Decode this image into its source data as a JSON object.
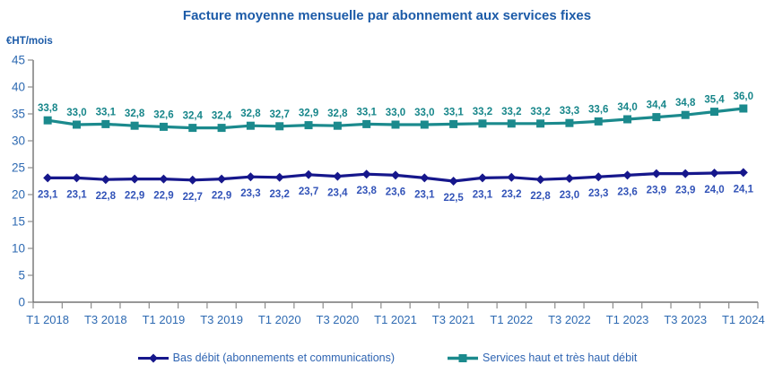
{
  "chart_data": {
    "type": "line",
    "title": "Facture moyenne mensuelle par abonnement aux services fixes",
    "ylabel": "€HT/mois",
    "xlabel": "",
    "ylim": [
      0,
      45
    ],
    "y_ticks": [
      0,
      5,
      10,
      15,
      20,
      25,
      30,
      35,
      40,
      45
    ],
    "grid": false,
    "legend_position": "bottom",
    "decimal_separator": ",",
    "categories": [
      "T1 2018",
      "T2 2018",
      "T3 2018",
      "T4 2018",
      "T1 2019",
      "T2 2019",
      "T3 2019",
      "T4 2019",
      "T1 2020",
      "T2 2020",
      "T3 2020",
      "T4 2020",
      "T1 2021",
      "T2 2021",
      "T3 2021",
      "T4 2021",
      "T1 2022",
      "T2 2022",
      "T3 2022",
      "T4 2022",
      "T1 2023",
      "T2 2023",
      "T3 2023",
      "T4 2023",
      "T1 2024"
    ],
    "x_axis_visible_labels": [
      "T1 2018",
      "T3 2018",
      "T1 2019",
      "T3 2019",
      "T1 2020",
      "T3 2020",
      "T1 2021",
      "T3 2021",
      "T1 2022",
      "T3 2022",
      "T1 2023",
      "T3 2023",
      "T1 2024"
    ],
    "series": [
      {
        "name": "Bas débit (abonnements et communications)",
        "marker": "diamond",
        "color": "#16178C",
        "label_color": "#3253B8",
        "label_position": "below",
        "values": [
          23.1,
          23.1,
          22.8,
          22.9,
          22.9,
          22.7,
          22.9,
          23.3,
          23.2,
          23.7,
          23.4,
          23.8,
          23.6,
          23.1,
          22.5,
          23.1,
          23.2,
          22.8,
          23.0,
          23.3,
          23.6,
          23.9,
          23.9,
          24.0,
          24.1
        ]
      },
      {
        "name": "Services haut et très haut débit",
        "marker": "square",
        "color": "#1B8A8D",
        "label_color": "#17868A",
        "label_position": "above",
        "values": [
          33.8,
          33.0,
          33.1,
          32.8,
          32.6,
          32.4,
          32.4,
          32.8,
          32.7,
          32.9,
          32.8,
          33.1,
          33.0,
          33.0,
          33.1,
          33.2,
          33.2,
          33.2,
          33.3,
          33.6,
          34.0,
          34.4,
          34.8,
          35.4,
          36.0
        ]
      }
    ]
  },
  "colors": {
    "title": "#1C5BA8",
    "axis_text": "#2E6AB2",
    "legend_text": "#2E64B2",
    "axis_line": "#595959",
    "tick_line": "#8C8C8C",
    "background": "#FFFFFF"
  }
}
